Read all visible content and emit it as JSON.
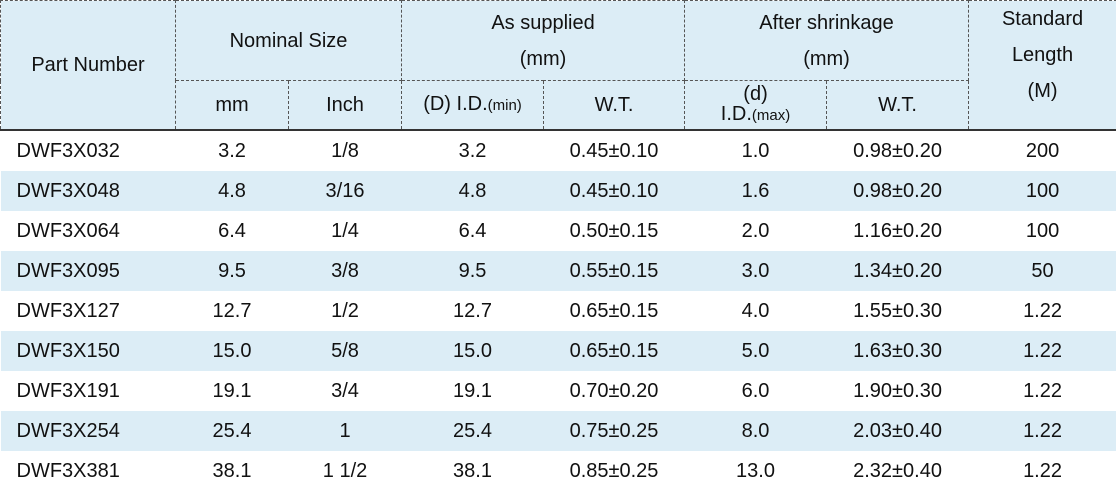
{
  "table": {
    "header": {
      "part_number": "Part Number",
      "nominal_size": "Nominal Size",
      "as_supplied": [
        "As supplied",
        "(mm)"
      ],
      "after_shrinkage": [
        "After shrinkage",
        "(mm)"
      ],
      "standard_length": [
        "Standard",
        "Length",
        "(M)"
      ],
      "mm": "mm",
      "inch": "Inch",
      "supplied_id": {
        "main": "(D) I.D.",
        "sub": "(min)"
      },
      "supplied_wt": "W.T.",
      "shrunk_id": {
        "top": "(d)",
        "main": "I.D.",
        "sub": "(max)"
      },
      "shrunk_wt": "W.T."
    },
    "rows": [
      [
        "DWF3X032",
        "3.2",
        "1/8",
        "3.2",
        "0.45±0.10",
        "1.0",
        "0.98±0.20",
        "200"
      ],
      [
        "DWF3X048",
        "4.8",
        "3/16",
        "4.8",
        "0.45±0.10",
        "1.6",
        "0.98±0.20",
        "100"
      ],
      [
        "DWF3X064",
        "6.4",
        "1/4",
        "6.4",
        "0.50±0.15",
        "2.0",
        "1.16±0.20",
        "100"
      ],
      [
        "DWF3X095",
        "9.5",
        "3/8",
        "9.5",
        "0.55±0.15",
        "3.0",
        "1.34±0.20",
        "50"
      ],
      [
        "DWF3X127",
        "12.7",
        "1/2",
        "12.7",
        "0.65±0.15",
        "4.0",
        "1.55±0.30",
        "1.22"
      ],
      [
        "DWF3X150",
        "15.0",
        "5/8",
        "15.0",
        "0.65±0.15",
        "5.0",
        "1.63±0.30",
        "1.22"
      ],
      [
        "DWF3X191",
        "19.1",
        "3/4",
        "19.1",
        "0.70±0.20",
        "6.0",
        "1.90±0.30",
        "1.22"
      ],
      [
        "DWF3X254",
        "25.4",
        "1",
        "25.4",
        "0.75±0.25",
        "8.0",
        "2.03±0.40",
        "1.22"
      ],
      [
        "DWF3X381",
        "38.1",
        "1 1/2",
        "38.1",
        "0.85±0.25",
        "13.0",
        "2.32±0.40",
        "1.22"
      ]
    ]
  }
}
